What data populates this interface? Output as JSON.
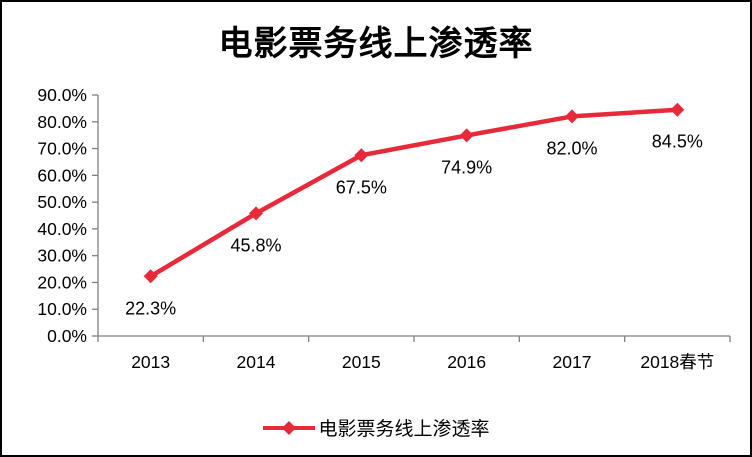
{
  "window": {
    "background": "#ffffff",
    "border_color": "#000000"
  },
  "chart_data": {
    "type": "line",
    "title": "电影票务线上渗透率",
    "categories": [
      "2013",
      "2014",
      "2015",
      "2016",
      "2017",
      "2018春节"
    ],
    "series": [
      {
        "name": "电影票务线上渗透率",
        "values": [
          22.3,
          45.8,
          67.5,
          74.9,
          82.0,
          84.5
        ]
      }
    ],
    "data_labels": [
      "22.3%",
      "45.8%",
      "67.5%",
      "74.9%",
      "82.0%",
      "84.5%"
    ],
    "y_ticks": [
      "90.0%",
      "80.0%",
      "70.0%",
      "60.0%",
      "50.0%",
      "40.0%",
      "30.0%",
      "20.0%",
      "10.0%",
      "0.0%"
    ],
    "ylim": [
      0,
      90
    ],
    "y_step": 10,
    "xlabel": "",
    "ylabel": "",
    "grid": false,
    "legend_position": "bottom",
    "marker": "diamond",
    "line_color": "#e62a39",
    "axis_color": "#808080",
    "text_color": "#000000"
  },
  "legend": {
    "label": "电影票务线上渗透率"
  }
}
